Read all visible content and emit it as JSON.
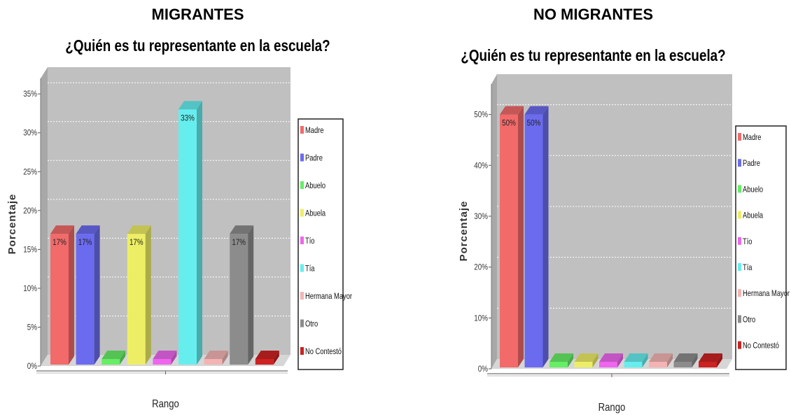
{
  "panels": [
    {
      "group_title": "MIGRANTES",
      "chart_title": "¿Quién es tu representante en la escuela?"
    },
    {
      "group_title": "NO MIGRANTES",
      "chart_title": "¿Quién es tu representante en la escuela?"
    }
  ],
  "chart_data": [
    {
      "type": "bar",
      "title": "¿Quién es tu representante en la escuela?",
      "xlabel": "Rango",
      "ylabel": "Porcentaje",
      "ylim": [
        0,
        37
      ],
      "yticks": [
        "0%",
        "5%",
        "10%",
        "15%",
        "20%",
        "25%",
        "30%",
        "35%"
      ],
      "ytick_values": [
        0,
        5,
        10,
        15,
        20,
        25,
        30,
        35
      ],
      "grid": true,
      "legend_position": "right",
      "categories": [
        "Madre",
        "Padre",
        "Abuelo",
        "Abuela",
        "Tío",
        "Tía",
        "Hermana Mayor",
        "Otro",
        "No Contestó"
      ],
      "values": [
        17,
        17,
        0,
        17,
        0,
        33,
        0,
        17,
        0
      ],
      "data_labels": [
        "17%",
        "17%",
        "",
        "17%",
        "",
        "33%",
        "",
        "17%",
        ""
      ],
      "colors": [
        "#f26a6a",
        "#6b6bef",
        "#66ee66",
        "#eeee66",
        "#ee66ee",
        "#66eeee",
        "#f4b4b4",
        "#8c8c8c",
        "#cc2222"
      ]
    },
    {
      "type": "bar",
      "title": "¿Quién es tu representante en la escuela?",
      "xlabel": "Rango",
      "ylabel": "Porcentaje",
      "ylim": [
        0,
        56
      ],
      "yticks": [
        "0%",
        "10%",
        "20%",
        "30%",
        "40%",
        "50%"
      ],
      "ytick_values": [
        0,
        10,
        20,
        30,
        40,
        50
      ],
      "grid": true,
      "legend_position": "right",
      "categories": [
        "Madre",
        "Padre",
        "Abuelo",
        "Abuela",
        "Tío",
        "Tía",
        "Hermana Mayor",
        "Otro",
        "No Contestó"
      ],
      "values": [
        50,
        50,
        0,
        0,
        0,
        0,
        0,
        0,
        0
      ],
      "data_labels": [
        "50%",
        "50%",
        "",
        "",
        "",
        "",
        "",
        "",
        ""
      ],
      "colors": [
        "#f26a6a",
        "#6b6bef",
        "#66ee66",
        "#eeee66",
        "#ee66ee",
        "#66eeee",
        "#f4b4b4",
        "#8c8c8c",
        "#cc2222"
      ]
    }
  ]
}
